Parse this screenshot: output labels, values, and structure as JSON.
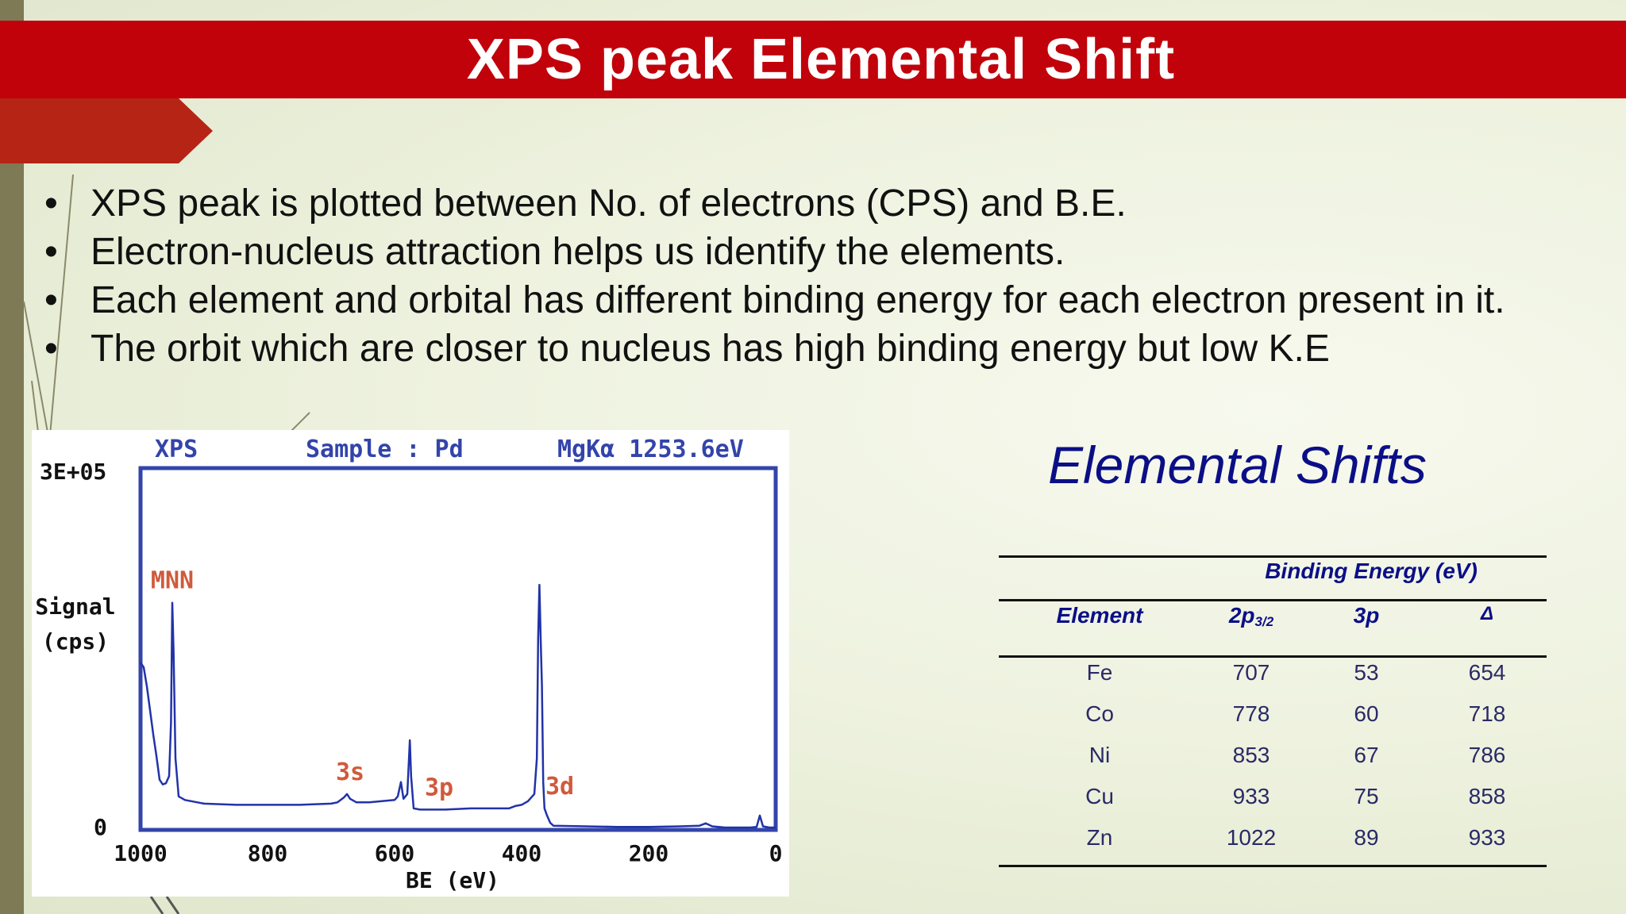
{
  "title": "XPS peak Elemental Shift",
  "bullets": [
    "XPS peak is plotted between No. of electrons (CPS) and B.E.",
    "Electron-nucleus attraction helps us identify the elements.",
    "Each element and orbital has different binding energy for each electron present in it.",
    "The orbit which are closer to nucleus has high binding energy but low K.E"
  ],
  "bullet_symbol": "•",
  "chart_header": {
    "left": "XPS",
    "mid": "Sample : Pd",
    "right": "MgKα 1253.6eV"
  },
  "chart_data": {
    "type": "line",
    "xlabel": "BE (eV)",
    "ylabel": "Signal (cps)",
    "xlim": [
      1000,
      0
    ],
    "ylim": [
      0,
      300000
    ],
    "y_tick_labels": [
      "3E+05",
      "0"
    ],
    "x_ticks": [
      1000,
      800,
      600,
      400,
      200,
      0
    ],
    "grid": false,
    "legend": "none",
    "series_color": "#2233a8",
    "peak_labels": [
      {
        "text": "MNN",
        "x": 950,
        "y": 0.0
      },
      {
        "text": "3s",
        "x": 670,
        "y": 0.0
      },
      {
        "text": "3p",
        "x": 530,
        "y": 0.0
      },
      {
        "text": "3d",
        "x": 340,
        "y": 0.0
      }
    ],
    "points": [
      [
        1000,
        140000
      ],
      [
        995,
        136000
      ],
      [
        990,
        120000
      ],
      [
        985,
        100000
      ],
      [
        980,
        80000
      ],
      [
        975,
        62000
      ],
      [
        970,
        42000
      ],
      [
        965,
        38000
      ],
      [
        960,
        39000
      ],
      [
        955,
        45000
      ],
      [
        952,
        90000
      ],
      [
        950,
        190000
      ],
      [
        948,
        150000
      ],
      [
        945,
        60000
      ],
      [
        940,
        28000
      ],
      [
        930,
        25000
      ],
      [
        900,
        22000
      ],
      [
        850,
        21000
      ],
      [
        800,
        21000
      ],
      [
        750,
        21000
      ],
      [
        700,
        22000
      ],
      [
        690,
        23000
      ],
      [
        680,
        27000
      ],
      [
        675,
        30000
      ],
      [
        670,
        26000
      ],
      [
        660,
        23000
      ],
      [
        640,
        23000
      ],
      [
        620,
        24000
      ],
      [
        600,
        25000
      ],
      [
        595,
        28000
      ],
      [
        590,
        40000
      ],
      [
        586,
        26000
      ],
      [
        580,
        30000
      ],
      [
        576,
        75000
      ],
      [
        574,
        45000
      ],
      [
        570,
        18000
      ],
      [
        560,
        17000
      ],
      [
        520,
        17000
      ],
      [
        480,
        18000
      ],
      [
        440,
        18000
      ],
      [
        420,
        18000
      ],
      [
        410,
        20000
      ],
      [
        400,
        21000
      ],
      [
        390,
        24000
      ],
      [
        380,
        30000
      ],
      [
        376,
        60000
      ],
      [
        374,
        160000
      ],
      [
        372,
        205000
      ],
      [
        370,
        160000
      ],
      [
        368,
        120000
      ],
      [
        366,
        40000
      ],
      [
        364,
        18000
      ],
      [
        360,
        12000
      ],
      [
        355,
        6000
      ],
      [
        350,
        3500
      ],
      [
        300,
        3000
      ],
      [
        250,
        2500
      ],
      [
        200,
        2500
      ],
      [
        150,
        3000
      ],
      [
        120,
        3500
      ],
      [
        110,
        5500
      ],
      [
        100,
        3000
      ],
      [
        80,
        2000
      ],
      [
        60,
        2000
      ],
      [
        40,
        2000
      ],
      [
        30,
        2500
      ],
      [
        25,
        12000
      ],
      [
        20,
        3000
      ],
      [
        10,
        2000
      ],
      [
        0,
        2000
      ]
    ]
  },
  "table": {
    "heading": "Elemental Shifts",
    "group_header": "Binding Energy (eV)",
    "col_element": "Element",
    "col_2p_main": "2p",
    "col_2p_sub": "3/2",
    "col_3p": "3p",
    "col_delta": "Δ",
    "rows": [
      {
        "element": "Fe",
        "p2": "707",
        "p3": "53",
        "delta": "654"
      },
      {
        "element": "Co",
        "p2": "778",
        "p3": "60",
        "delta": "718"
      },
      {
        "element": "Ni",
        "p2": "853",
        "p3": "67",
        "delta": "786"
      },
      {
        "element": "Cu",
        "p2": "933",
        "p3": "75",
        "delta": "858"
      },
      {
        "element": "Zn",
        "p2": "1022",
        "p3": "89",
        "delta": "933"
      }
    ]
  }
}
